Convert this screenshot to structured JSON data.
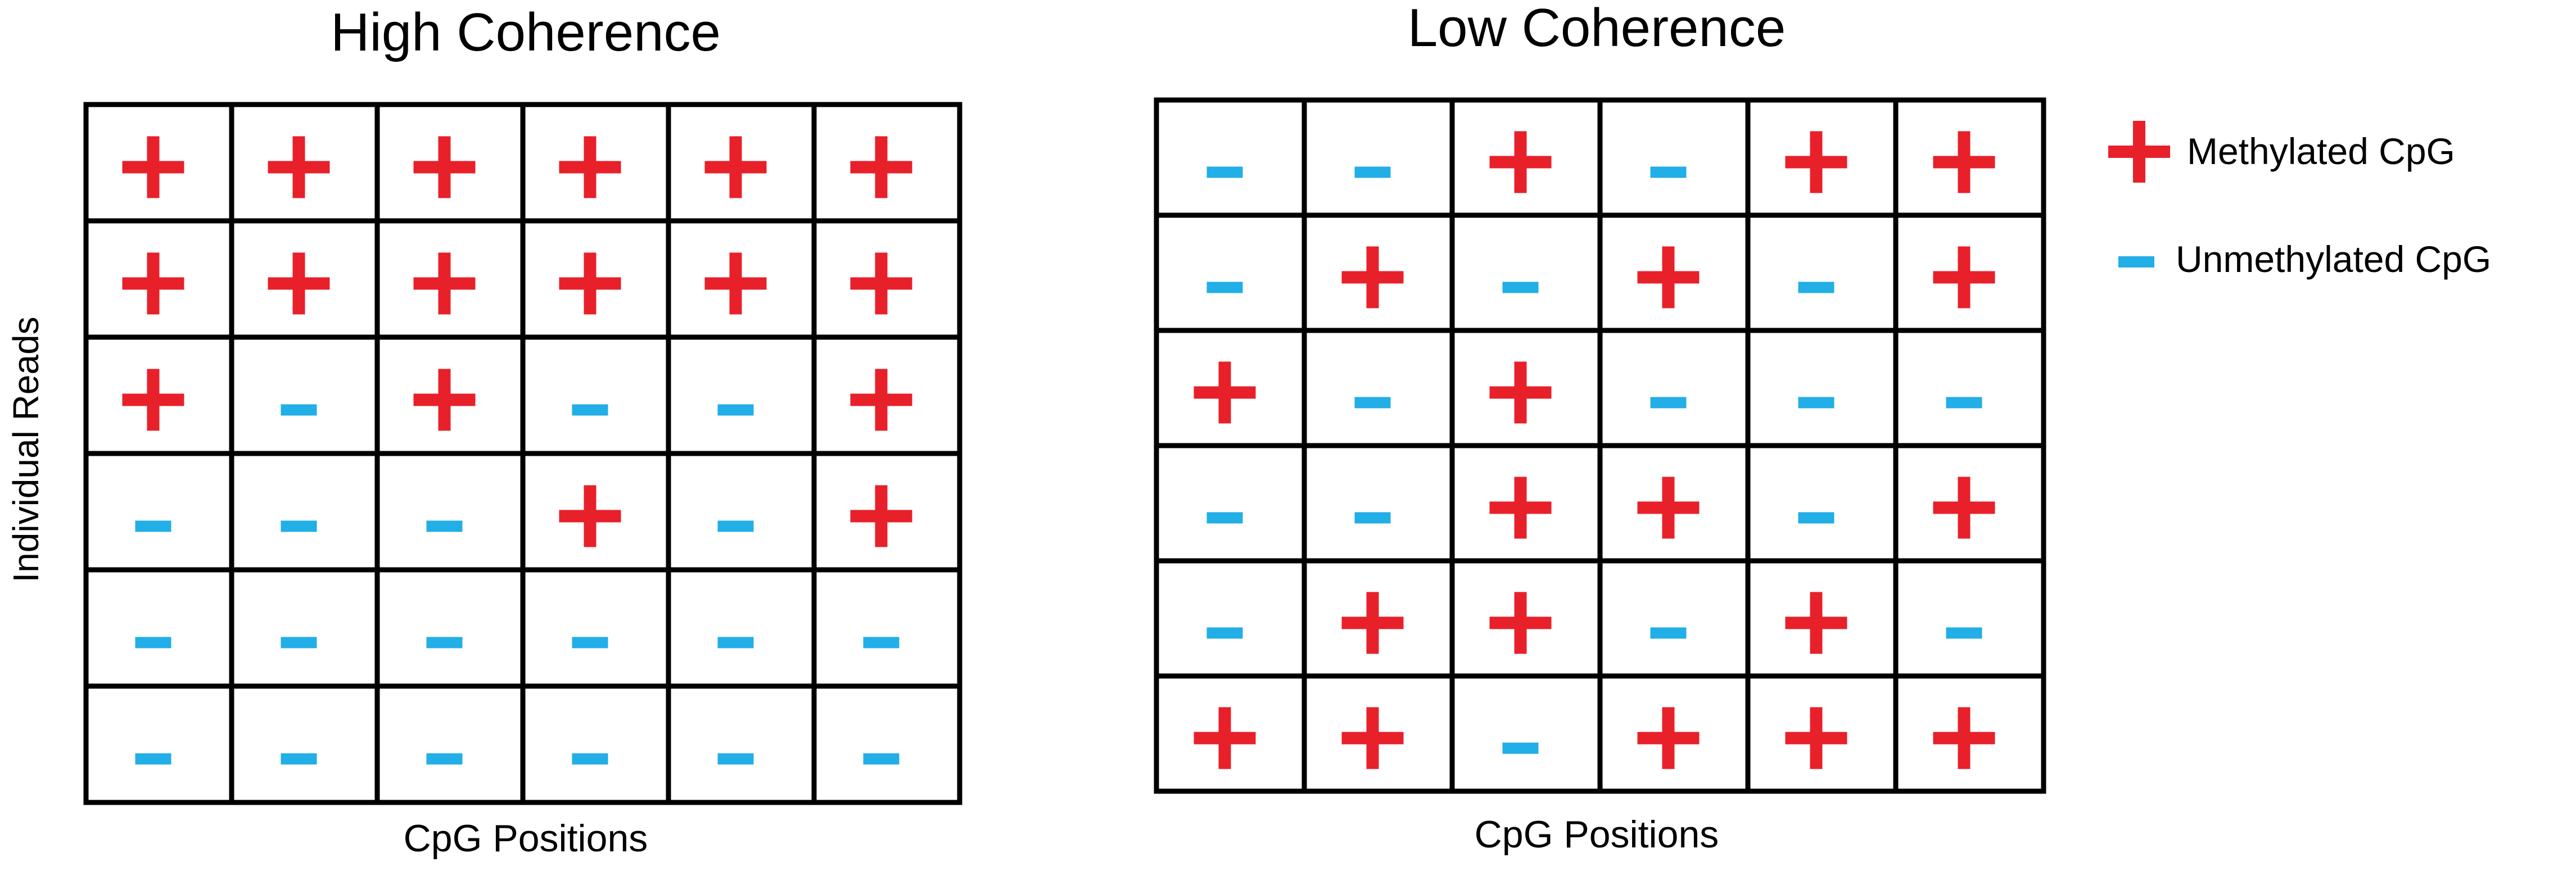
{
  "colors": {
    "methylated": "#e8202a",
    "unmethylated": "#22aee6",
    "grid": "#000000"
  },
  "panels": [
    {
      "title": "High Coherence",
      "xlabel": "CpG Positions",
      "ylabel": "Individual Reads",
      "rows": [
        [
          "+",
          "+",
          "+",
          "+",
          "+",
          "+"
        ],
        [
          "+",
          "+",
          "+",
          "+",
          "+",
          "+"
        ],
        [
          "+",
          "-",
          "+",
          "-",
          "-",
          "+"
        ],
        [
          "-",
          "-",
          "-",
          "+",
          "-",
          "+"
        ],
        [
          "-",
          "-",
          "-",
          "-",
          "-",
          "-"
        ],
        [
          "-",
          "-",
          "-",
          "-",
          "-",
          "-"
        ]
      ]
    },
    {
      "title": "Low Coherence",
      "xlabel": "CpG Positions",
      "ylabel": "",
      "rows": [
        [
          "-",
          "-",
          "+",
          "-",
          "+",
          "+"
        ],
        [
          "-",
          "+",
          "-",
          "+",
          "-",
          "+"
        ],
        [
          "+",
          "-",
          "+",
          "-",
          "-",
          "-"
        ],
        [
          "-",
          "-",
          "+",
          "+",
          "-",
          "+"
        ],
        [
          "-",
          "+",
          "+",
          "-",
          "+",
          "-"
        ],
        [
          "+",
          "+",
          "-",
          "+",
          "+",
          "+"
        ]
      ]
    }
  ],
  "legend": {
    "items": [
      {
        "symbol": "+",
        "label": "Methylated CpG"
      },
      {
        "symbol": "-",
        "label": "Unmethylated CpG"
      }
    ]
  }
}
